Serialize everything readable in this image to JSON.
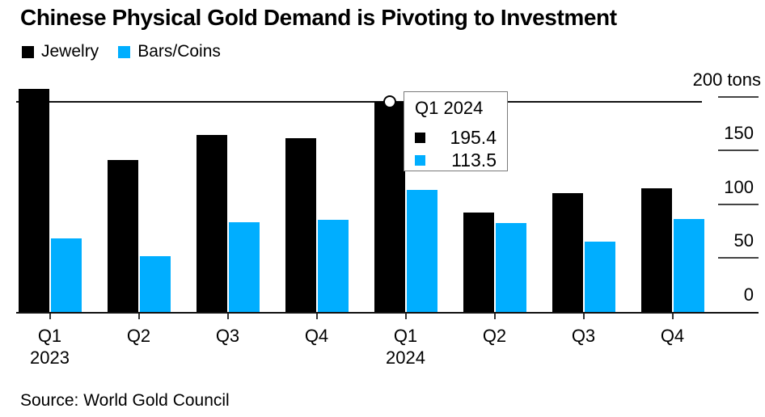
{
  "header": {
    "title": "Chinese Physical Gold Demand is Pivoting to Investment"
  },
  "legend": {
    "items": [
      {
        "label": "Jewelry",
        "color": "#000000"
      },
      {
        "label": "Bars/Coins",
        "color": "#00AEFF"
      }
    ]
  },
  "chart_data": {
    "type": "bar",
    "categories": [
      "Q1 2023",
      "Q2 2023",
      "Q3 2023",
      "Q4 2023",
      "Q1 2024",
      "Q2 2024",
      "Q3 2024",
      "Q4 2024"
    ],
    "series": [
      {
        "name": "Jewelry",
        "color": "#000000",
        "values": [
          207,
          141,
          164,
          161,
          195.4,
          92.5,
          110,
          114.5
        ]
      },
      {
        "name": "Bars/Coins",
        "color": "#00AEFF",
        "values": [
          68,
          51.5,
          83.5,
          85.5,
          113.5,
          82.5,
          65,
          86.5
        ]
      }
    ],
    "title": "Chinese Physical Gold Demand is Pivoting to Investment",
    "xlabel": "",
    "ylabel": "tons",
    "ylim": [
      0,
      210
    ],
    "yticks": [
      0,
      50,
      100,
      150,
      200
    ],
    "grid": "off",
    "legend_position": "top-left"
  },
  "x_axis": {
    "groups": [
      {
        "label": "Q1",
        "year": "2023"
      },
      {
        "label": "Q2"
      },
      {
        "label": "Q3"
      },
      {
        "label": "Q4"
      },
      {
        "label": "Q1",
        "year": "2024"
      },
      {
        "label": "Q2"
      },
      {
        "label": "Q3"
      },
      {
        "label": "Q4"
      }
    ]
  },
  "y_axis": {
    "ticks": [
      {
        "label": "200 tons",
        "value": 200,
        "is_unit": true
      },
      {
        "label": "150",
        "value": 150
      },
      {
        "label": "100",
        "value": 100
      },
      {
        "label": "50",
        "value": 50
      },
      {
        "label": "0",
        "value": 0,
        "no_line": true
      }
    ]
  },
  "tooltip": {
    "title": "Q1 2024",
    "group_index": 4,
    "marker_series_index": 0,
    "marker_value": 195.4,
    "rows": [
      {
        "series": "Jewelry",
        "color": "#000000",
        "value": "195.4"
      },
      {
        "series": "Bars/Coins",
        "color": "#00AEFF",
        "value": "113.5"
      }
    ]
  },
  "source": {
    "text": "Source: World Gold Council"
  }
}
